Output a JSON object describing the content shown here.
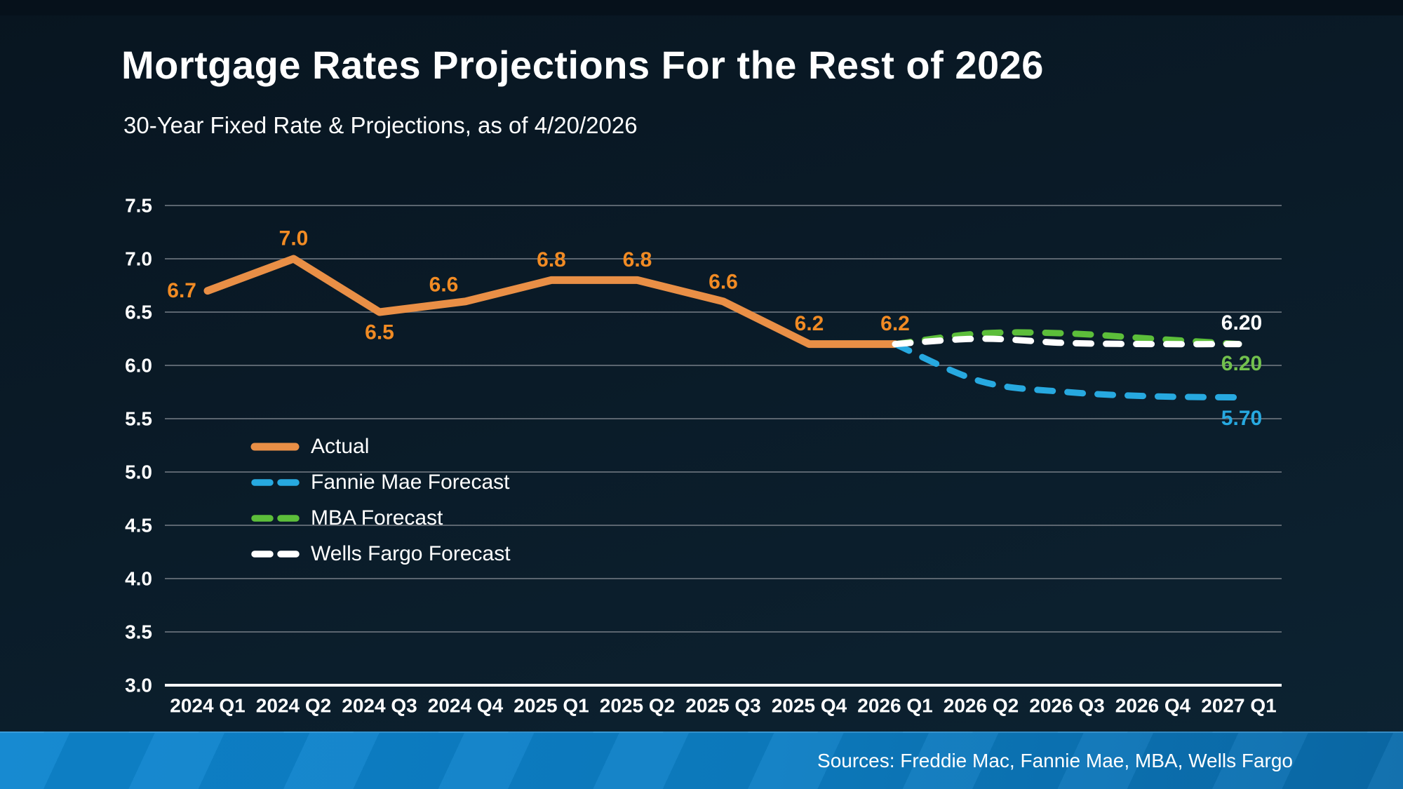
{
  "page": {
    "title": "Mortgage Rates Projections For the Rest of 2026",
    "subtitle": "30-Year Fixed Rate & Projections, as of 4/20/2026",
    "source_note": "Sources: Freddie Mac, Fannie Mae, MBA, Wells Fargo"
  },
  "colors": {
    "background_top": "#081520",
    "background_bottom": "#0d2332",
    "top_band": "#06111b",
    "gridline": "#5b656f",
    "axis_line": "#ffffff",
    "tick_label": "#ffffff",
    "actual": "#e98f46",
    "actual_label": "#f18b24",
    "fannie_mae": "#27a9e0",
    "mba": "#5cbe3a",
    "mba_label": "#72c14d",
    "wells_fargo": "#ffffff",
    "source_bar_left": "#0e86cf",
    "source_bar_right": "#0b6cab",
    "source_text": "#ffffff"
  },
  "legend": {
    "items": [
      {
        "id": "actual",
        "label": "Actual",
        "color_key": "actual",
        "dash": "solid"
      },
      {
        "id": "fannie-mae",
        "label": "Fannie Mae Forecast",
        "color_key": "fannie_mae",
        "dash": "dash-dash-dot"
      },
      {
        "id": "mba",
        "label": "MBA Forecast",
        "color_key": "mba",
        "dash": "dash-dash-dot"
      },
      {
        "id": "wells-fargo",
        "label": "Wells Fargo Forecast",
        "color_key": "wells_fargo",
        "dash": "dash-dash-dot"
      }
    ]
  },
  "chart_data": {
    "type": "line",
    "title": "Mortgage Rates Projections For the Rest of 2026",
    "subtitle": "30-Year Fixed Rate & Projections, as of 4/20/2026",
    "categories": [
      "2024 Q1",
      "2024 Q2",
      "2024 Q3",
      "2024 Q4",
      "2025 Q1",
      "2025 Q2",
      "2025 Q3",
      "2025 Q4",
      "2026 Q1",
      "2026 Q2",
      "2026 Q3",
      "2026 Q4",
      "2027 Q1"
    ],
    "ylim": [
      3.0,
      7.5
    ],
    "ytick_labels": [
      "7.5",
      "7.0",
      "6.5",
      "6.0",
      "5.5",
      "5.0",
      "4.5",
      "4.0",
      "3.5",
      "3.0"
    ],
    "grid": true,
    "legend_position": "inside-left",
    "series": [
      {
        "name": "Actual",
        "style": "solid",
        "smooth": false,
        "color_key": "actual",
        "label_color_key": "actual_label",
        "start_index": 0,
        "values": [
          6.7,
          7.0,
          6.5,
          6.6,
          6.8,
          6.8,
          6.6,
          6.2,
          6.2
        ],
        "point_labels": [
          {
            "text": "6.7",
            "anchor": "end",
            "dx": -16,
            "dy": 0
          },
          {
            "text": "7.0",
            "anchor": "middle",
            "dx": 0,
            "dy": -29
          },
          {
            "text": "6.5",
            "anchor": "middle",
            "dx": 0,
            "dy": 29
          },
          {
            "text": "6.6",
            "anchor": "middle",
            "dx": -31,
            "dy": -24
          },
          {
            "text": "6.8",
            "anchor": "middle",
            "dx": 0,
            "dy": -29
          },
          {
            "text": "6.8",
            "anchor": "middle",
            "dx": 0,
            "dy": -29
          },
          {
            "text": "6.6",
            "anchor": "middle",
            "dx": 0,
            "dy": -28
          },
          {
            "text": "6.2",
            "anchor": "middle",
            "dx": 0,
            "dy": -29
          },
          {
            "text": "6.2",
            "anchor": "middle",
            "dx": 0,
            "dy": -29
          }
        ]
      },
      {
        "name": "MBA Forecast",
        "style": "dashed",
        "smooth": true,
        "color_key": "mba",
        "label_color_key": "mba_label",
        "start_index": 8,
        "values": [
          6.2,
          6.3,
          6.3,
          6.25,
          6.2
        ],
        "end_label": "6.20",
        "end_label_dy": 28
      },
      {
        "name": "Fannie Mae Forecast",
        "style": "dashed",
        "smooth": true,
        "color_key": "fannie_mae",
        "label_color_key": "fannie_mae",
        "start_index": 8,
        "values": [
          6.2,
          5.85,
          5.75,
          5.71,
          5.7
        ],
        "end_label": "5.70",
        "end_label_dy": 30
      },
      {
        "name": "Wells Fargo Forecast",
        "style": "dashed",
        "smooth": true,
        "color_key": "wells_fargo",
        "label_color_key": "wells_fargo",
        "start_index": 8,
        "values": [
          6.2,
          6.25,
          6.21,
          6.2,
          6.2
        ],
        "end_label": "6.20",
        "end_label_dy": -30
      }
    ]
  }
}
